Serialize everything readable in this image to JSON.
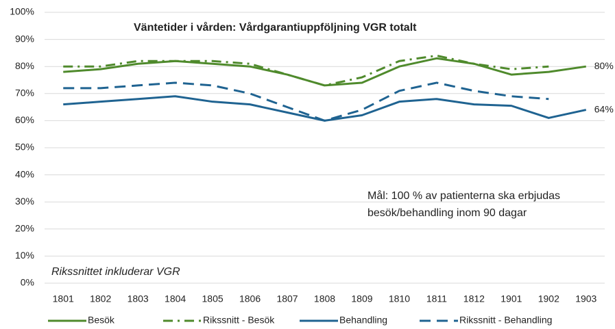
{
  "chart_data": {
    "type": "line",
    "title": "Väntetider i vården: Vårdgarantiuppföljning VGR totalt",
    "annotation": [
      "Mål: 100 % av patienterna ska erbjudas",
      "besök/behandling inom 90 dagar"
    ],
    "note": "Rikssnittet inkluderar VGR",
    "categories": [
      "1801",
      "1802",
      "1803",
      "1804",
      "1805",
      "1806",
      "1807",
      "1808",
      "1809",
      "1810",
      "1811",
      "1812",
      "1901",
      "1902",
      "1903"
    ],
    "series": [
      {
        "name": "Besök",
        "color": "#4f8a2c",
        "dash": "solid",
        "values": [
          78,
          79,
          81,
          82,
          81,
          80,
          77,
          73,
          74,
          80,
          83,
          81,
          77,
          78,
          80
        ],
        "value_labels": [
          null,
          null,
          null,
          null,
          null,
          null,
          null,
          null,
          null,
          null,
          null,
          null,
          null,
          null,
          "80%"
        ]
      },
      {
        "name": "Rikssnitt - Besök",
        "color": "#4f8a2c",
        "dash": "dashdot",
        "values": [
          80,
          80,
          82,
          82,
          82,
          81,
          77,
          73,
          76,
          82,
          84,
          81,
          79,
          80,
          null
        ]
      },
      {
        "name": "Behandling",
        "color": "#1f6391",
        "dash": "solid",
        "values": [
          66,
          67,
          68,
          69,
          67,
          66,
          63,
          60,
          62,
          67,
          68,
          66,
          65.5,
          61,
          64
        ],
        "value_labels": [
          null,
          null,
          null,
          null,
          null,
          null,
          null,
          null,
          null,
          null,
          null,
          null,
          null,
          null,
          "64%"
        ]
      },
      {
        "name": "Rikssnitt - Behandling",
        "color": "#1f6391",
        "dash": "dashed",
        "values": [
          72,
          72,
          73,
          74,
          73,
          70,
          65,
          60,
          64,
          71,
          74,
          71,
          69,
          68,
          null
        ]
      }
    ],
    "ylim": [
      0,
      100
    ],
    "yticks": [
      {
        "value": 0,
        "label": "0%"
      },
      {
        "value": 10,
        "label": "10%"
      },
      {
        "value": 20,
        "label": "20%"
      },
      {
        "value": 30,
        "label": "30%"
      },
      {
        "value": 40,
        "label": "40%"
      },
      {
        "value": 50,
        "label": "50%"
      },
      {
        "value": 60,
        "label": "60%"
      },
      {
        "value": 70,
        "label": "70%"
      },
      {
        "value": 80,
        "label": "80%"
      },
      {
        "value": 90,
        "label": "90%"
      },
      {
        "value": 100,
        "label": "100%"
      }
    ],
    "grid": true,
    "legend": "bottom"
  }
}
